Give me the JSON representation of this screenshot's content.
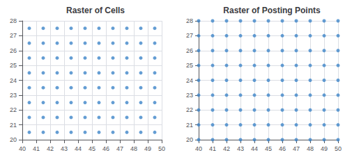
{
  "chart_data": [
    {
      "type": "scatter",
      "title": "Raster of Cells",
      "color": "#3d85c8",
      "grid": true,
      "xlim": [
        40,
        50
      ],
      "xticks": [
        40,
        41,
        42,
        43,
        44,
        45,
        46,
        47,
        48,
        49,
        50
      ],
      "ylim": [
        20,
        28
      ],
      "yticks": [
        20,
        21,
        22,
        23,
        24,
        25,
        26,
        27,
        28
      ],
      "x": [
        40.5,
        40.5,
        40.5,
        40.5,
        40.5,
        40.5,
        40.5,
        40.5,
        41.5,
        41.5,
        41.5,
        41.5,
        41.5,
        41.5,
        41.5,
        41.5,
        42.5,
        42.5,
        42.5,
        42.5,
        42.5,
        42.5,
        42.5,
        42.5,
        43.5,
        43.5,
        43.5,
        43.5,
        43.5,
        43.5,
        43.5,
        43.5,
        44.5,
        44.5,
        44.5,
        44.5,
        44.5,
        44.5,
        44.5,
        44.5,
        45.5,
        45.5,
        45.5,
        45.5,
        45.5,
        45.5,
        45.5,
        45.5,
        46.5,
        46.5,
        46.5,
        46.5,
        46.5,
        46.5,
        46.5,
        46.5,
        47.5,
        47.5,
        47.5,
        47.5,
        47.5,
        47.5,
        47.5,
        47.5,
        48.5,
        48.5,
        48.5,
        48.5,
        48.5,
        48.5,
        48.5,
        48.5,
        49.5,
        49.5,
        49.5,
        49.5,
        49.5,
        49.5,
        49.5,
        49.5
      ],
      "values": [
        20.5,
        21.5,
        22.5,
        23.5,
        24.5,
        25.5,
        26.5,
        27.5,
        20.5,
        21.5,
        22.5,
        23.5,
        24.5,
        25.5,
        26.5,
        27.5,
        20.5,
        21.5,
        22.5,
        23.5,
        24.5,
        25.5,
        26.5,
        27.5,
        20.5,
        21.5,
        22.5,
        23.5,
        24.5,
        25.5,
        26.5,
        27.5,
        20.5,
        21.5,
        22.5,
        23.5,
        24.5,
        25.5,
        26.5,
        27.5,
        20.5,
        21.5,
        22.5,
        23.5,
        24.5,
        25.5,
        26.5,
        27.5,
        20.5,
        21.5,
        22.5,
        23.5,
        24.5,
        25.5,
        26.5,
        27.5,
        20.5,
        21.5,
        22.5,
        23.5,
        24.5,
        25.5,
        26.5,
        27.5,
        20.5,
        21.5,
        22.5,
        23.5,
        24.5,
        25.5,
        26.5,
        27.5,
        20.5,
        21.5,
        22.5,
        23.5,
        24.5,
        25.5,
        26.5,
        27.5
      ]
    },
    {
      "type": "scatter",
      "title": "Raster of Posting Points",
      "color": "#3d85c8",
      "grid": true,
      "xlim": [
        40,
        50
      ],
      "xticks": [
        40,
        41,
        42,
        43,
        44,
        45,
        46,
        47,
        48,
        49,
        50
      ],
      "ylim": [
        20,
        28
      ],
      "yticks": [
        20,
        21,
        22,
        23,
        24,
        25,
        26,
        27,
        28
      ],
      "x": [
        40,
        40,
        40,
        40,
        40,
        40,
        40,
        40,
        40,
        41,
        41,
        41,
        41,
        41,
        41,
        41,
        41,
        41,
        42,
        42,
        42,
        42,
        42,
        42,
        42,
        42,
        42,
        43,
        43,
        43,
        43,
        43,
        43,
        43,
        43,
        43,
        44,
        44,
        44,
        44,
        44,
        44,
        44,
        44,
        44,
        45,
        45,
        45,
        45,
        45,
        45,
        45,
        45,
        45,
        46,
        46,
        46,
        46,
        46,
        46,
        46,
        46,
        46,
        47,
        47,
        47,
        47,
        47,
        47,
        47,
        47,
        47,
        48,
        48,
        48,
        48,
        48,
        48,
        48,
        48,
        48,
        49,
        49,
        49,
        49,
        49,
        49,
        49,
        49,
        49,
        50,
        50,
        50,
        50,
        50,
        50,
        50,
        50,
        50
      ],
      "values": [
        20,
        21,
        22,
        23,
        24,
        25,
        26,
        27,
        28,
        20,
        21,
        22,
        23,
        24,
        25,
        26,
        27,
        28,
        20,
        21,
        22,
        23,
        24,
        25,
        26,
        27,
        28,
        20,
        21,
        22,
        23,
        24,
        25,
        26,
        27,
        28,
        20,
        21,
        22,
        23,
        24,
        25,
        26,
        27,
        28,
        20,
        21,
        22,
        23,
        24,
        25,
        26,
        27,
        28,
        20,
        21,
        22,
        23,
        24,
        25,
        26,
        27,
        28,
        20,
        21,
        22,
        23,
        24,
        25,
        26,
        27,
        28,
        20,
        21,
        22,
        23,
        24,
        25,
        26,
        27,
        28,
        20,
        21,
        22,
        23,
        24,
        25,
        26,
        27,
        28,
        20,
        21,
        22,
        23,
        24,
        25,
        26,
        27,
        28
      ]
    }
  ]
}
